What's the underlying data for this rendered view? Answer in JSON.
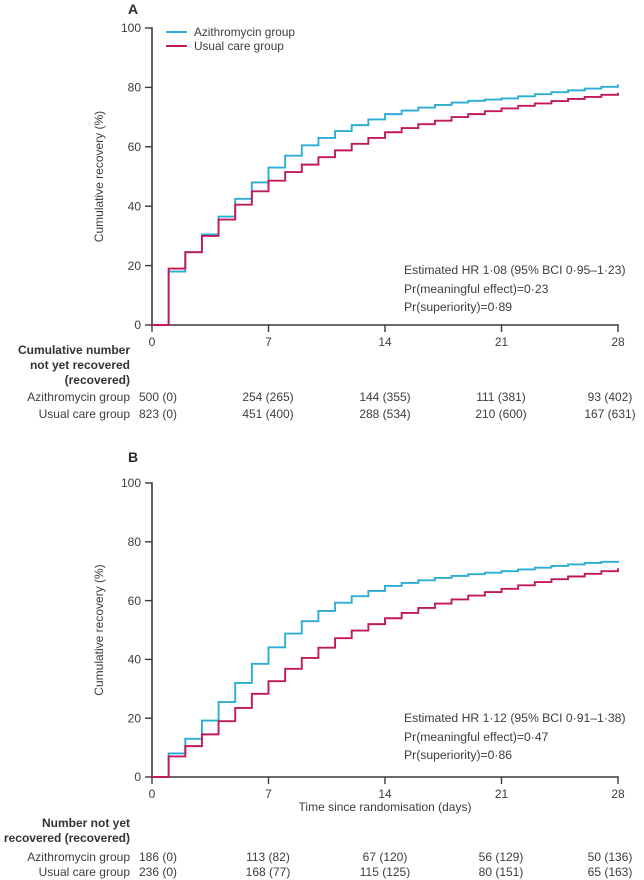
{
  "figure": {
    "background": "#ffffff",
    "text_color": "#3d3d3d",
    "axis_color": "#3a3a3a"
  },
  "legend": {
    "items": [
      {
        "label": "Azithromycin group",
        "color": "#2badd4"
      },
      {
        "label": "Usual care group",
        "color": "#c1195c"
      }
    ]
  },
  "chart_data": [
    {
      "type": "line",
      "subtype": "step-cumulative-incidence",
      "panel_label": "A",
      "ylabel": "Cumulative recovery (%)",
      "xlabel": "",
      "xlim": [
        0,
        28
      ],
      "ylim": [
        0,
        100
      ],
      "x_ticks": [
        0,
        7,
        14,
        21,
        28
      ],
      "y_ticks": [
        0,
        20,
        40,
        60,
        80,
        100
      ],
      "grid": false,
      "legend_position": "top-left-inside",
      "x_days": [
        0,
        1,
        2,
        3,
        4,
        5,
        6,
        7,
        8,
        9,
        10,
        11,
        12,
        13,
        14,
        15,
        16,
        17,
        18,
        19,
        20,
        21,
        22,
        23,
        24,
        25,
        26,
        27,
        28
      ],
      "series": [
        {
          "name": "Azithromycin group",
          "color": "#2badd4",
          "values": [
            0,
            18,
            24.5,
            30.5,
            36.5,
            42.5,
            48,
            53,
            57,
            60.5,
            63,
            65.3,
            67.3,
            69.2,
            71,
            72.2,
            73.2,
            74.1,
            74.9,
            75.5,
            75.9,
            76.3,
            77,
            77.7,
            78.4,
            79,
            79.6,
            80.2,
            81
          ]
        },
        {
          "name": "Usual care group",
          "color": "#c1195c",
          "values": [
            0,
            19,
            24.5,
            30,
            35.5,
            40.5,
            45,
            48.6,
            51.5,
            54,
            56.5,
            58.8,
            61,
            63,
            64.9,
            66.3,
            67.6,
            68.8,
            70,
            71,
            72,
            72.9,
            73.8,
            74.6,
            75.4,
            76.1,
            76.8,
            77.5,
            78.2
          ]
        }
      ],
      "annotation_lines": [
        "Estimated HR 1·08 (95% BCI 0·95–1·23)",
        "Pr(meaningful effect)=0·23",
        "Pr(superiority)=0·89"
      ],
      "risk_table": {
        "header_lines": [
          "Cumulative number",
          "not yet recovered",
          "(recovered)"
        ],
        "time_points": [
          0,
          7,
          14,
          21,
          28
        ],
        "rows": [
          {
            "label": "Azithromycin group",
            "values": [
              "500 (0)",
              "254 (265)",
              "144 (355)",
              "111 (381)",
              "93 (402)"
            ]
          },
          {
            "label": "Usual care group",
            "values": [
              "823 (0)",
              "451 (400)",
              "288 (534)",
              "210 (600)",
              "167 (631)"
            ]
          }
        ]
      }
    },
    {
      "type": "line",
      "subtype": "step-cumulative-incidence",
      "panel_label": "B",
      "ylabel": "Cumulative recovery (%)",
      "xlabel": "Time since randomisation (days)",
      "xlim": [
        0,
        28
      ],
      "ylim": [
        0,
        100
      ],
      "x_ticks": [
        0,
        7,
        14,
        21,
        28
      ],
      "y_ticks": [
        0,
        20,
        40,
        60,
        80,
        100
      ],
      "grid": false,
      "legend_position": "none",
      "x_days": [
        0,
        1,
        2,
        3,
        4,
        5,
        6,
        7,
        8,
        9,
        10,
        11,
        12,
        13,
        14,
        15,
        16,
        17,
        18,
        19,
        20,
        21,
        22,
        23,
        24,
        25,
        26,
        27,
        28
      ],
      "series": [
        {
          "name": "Azithromycin group",
          "color": "#2badd4",
          "values": [
            0,
            8,
            13,
            19.2,
            25.5,
            32,
            38.5,
            44.1,
            48.8,
            53,
            56.5,
            59.3,
            61.5,
            63.3,
            65,
            66,
            66.9,
            67.7,
            68.4,
            69,
            69.5,
            70,
            70.6,
            71.2,
            71.8,
            72.3,
            72.8,
            73.2,
            73.5
          ]
        },
        {
          "name": "Usual care group",
          "color": "#c1195c",
          "values": [
            0,
            7,
            10.5,
            14.5,
            19,
            23.5,
            28.3,
            32.6,
            36.8,
            40.5,
            44,
            47.2,
            49.8,
            52,
            54,
            55.8,
            57.5,
            59,
            60.4,
            61.7,
            62.9,
            64,
            65.2,
            66.3,
            67.3,
            68.2,
            69.1,
            70,
            71
          ]
        }
      ],
      "annotation_lines": [
        "Estimated HR 1·12 (95% BCI 0·91–1·38)",
        "Pr(meaningful effect)=0·47",
        "Pr(superiority)=0·86"
      ],
      "risk_table": {
        "header_lines": [
          "Number not yet",
          "recovered (recovered)"
        ],
        "time_points": [
          0,
          7,
          14,
          21,
          28
        ],
        "rows": [
          {
            "label": "Azithromycin group",
            "values": [
              "186 (0)",
              "113 (82)",
              "67 (120)",
              "56 (129)",
              "50 (136)"
            ]
          },
          {
            "label": "Usual care group",
            "values": [
              "236 (0)",
              "168 (77)",
              "115 (125)",
              "80 (151)",
              "65 (163)"
            ]
          }
        ]
      }
    }
  ]
}
